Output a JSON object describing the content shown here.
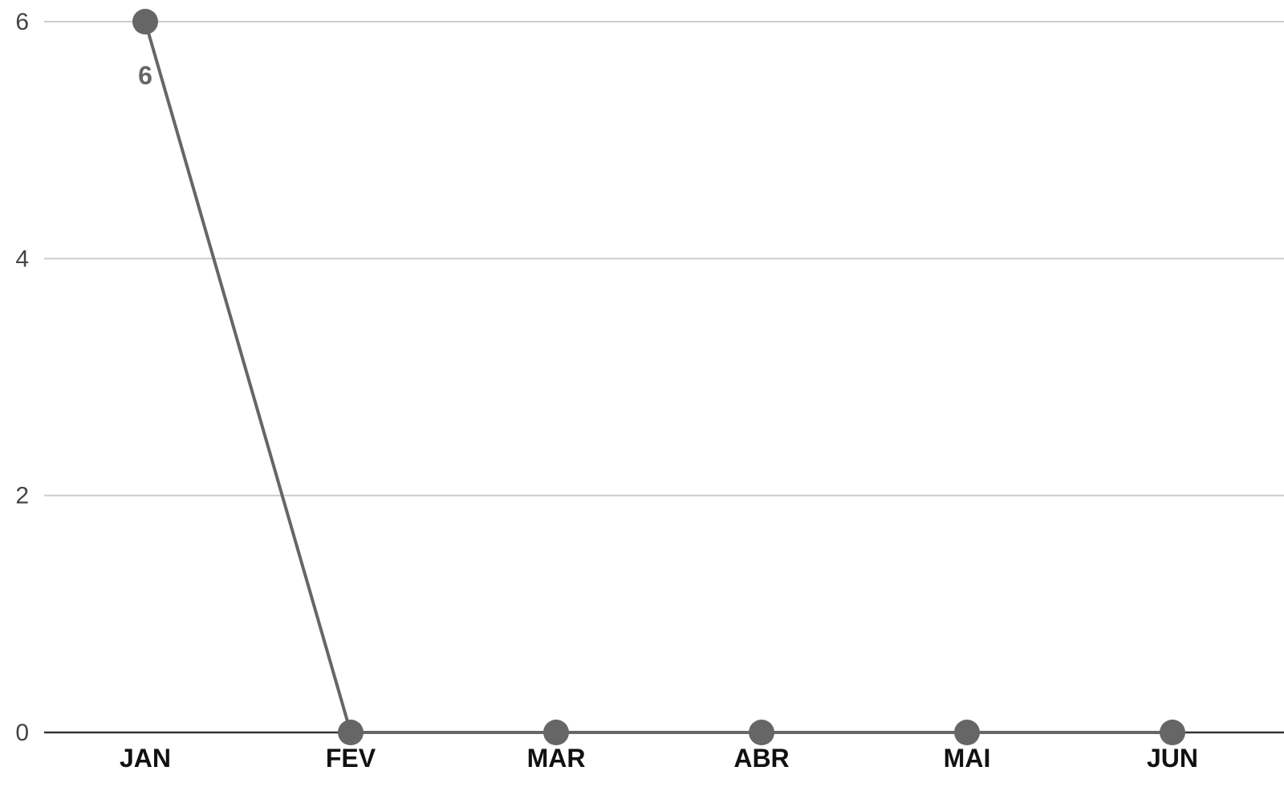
{
  "chart_data": {
    "type": "line",
    "categories": [
      "JAN",
      "FEV",
      "MAR",
      "ABR",
      "MAI",
      "JUN"
    ],
    "series": [
      {
        "values": [
          6,
          0,
          0,
          0,
          0,
          0
        ],
        "data_labels": [
          "6",
          "",
          "",
          "",
          "",
          ""
        ]
      }
    ],
    "y_ticks": [
      "0",
      "2",
      "4",
      "6"
    ],
    "ylim": [
      0,
      6
    ],
    "grid": true,
    "legend": "none",
    "colors": {
      "series": "#666666",
      "grid": "#cccccc",
      "baseline": "#333333"
    }
  }
}
